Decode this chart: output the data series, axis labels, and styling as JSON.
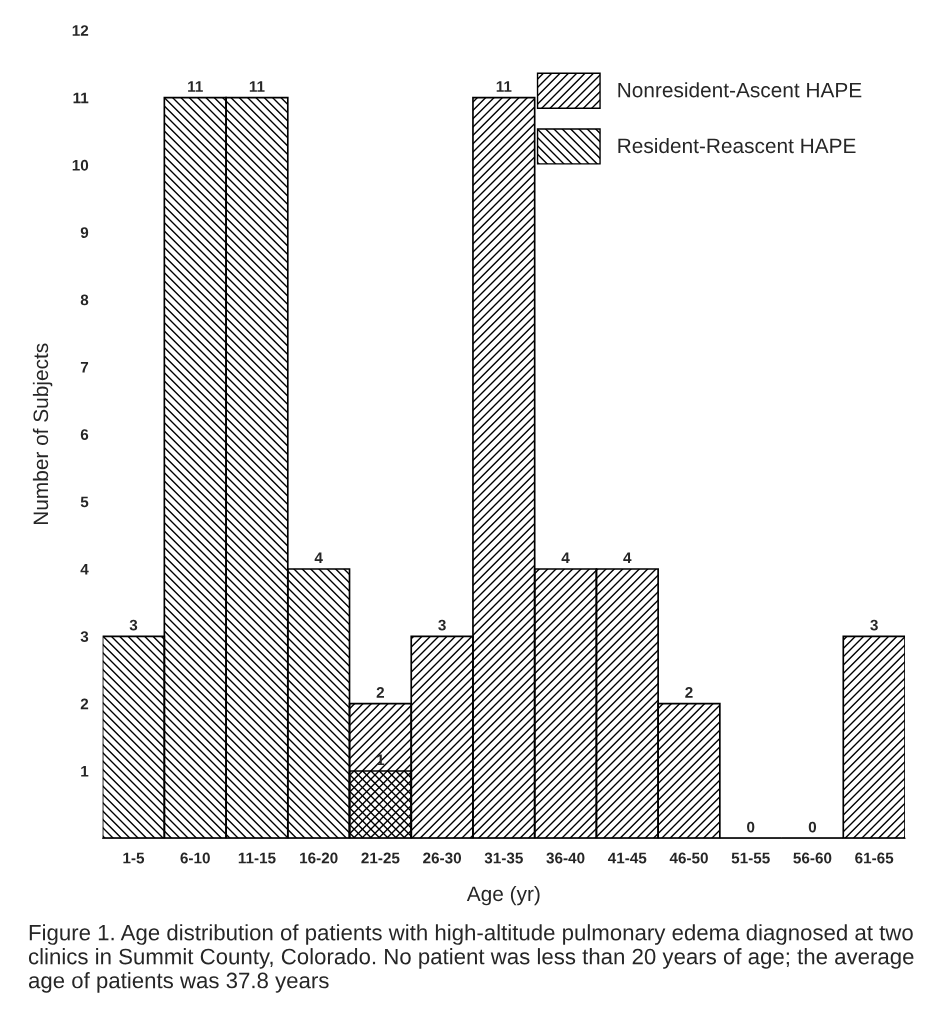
{
  "chart_data": {
    "type": "bar",
    "xlabel": "Age (yr)",
    "ylabel": "Number of Subjects",
    "categories": [
      "1-5",
      "6-10",
      "11-15",
      "16-20",
      "21-25",
      "26-30",
      "31-35",
      "36-40",
      "41-45",
      "46-50",
      "51-55",
      "56-60",
      "61-65"
    ],
    "series": [
      {
        "name": "Nonresident-Ascent HAPE",
        "color": "#000000",
        "values": [
          0,
          0,
          0,
          0,
          2,
          3,
          11,
          4,
          4,
          2,
          0,
          0,
          3
        ],
        "value_labels": [
          null,
          null,
          null,
          null,
          "2",
          "3",
          "11",
          "4",
          "4",
          "2",
          "0",
          "0",
          "3"
        ]
      },
      {
        "name": "Resident-Reascent HAPE",
        "color": "#000000",
        "values": [
          3,
          11,
          11,
          4,
          1,
          0,
          0,
          0,
          0,
          0,
          0,
          0,
          0
        ],
        "value_labels": [
          "3",
          "11",
          "11",
          "4",
          "1",
          null,
          null,
          null,
          null,
          null,
          null,
          null,
          null
        ]
      }
    ],
    "ylim": [
      0,
      12
    ],
    "yticks": [
      1,
      2,
      3,
      4,
      5,
      6,
      7,
      8,
      9,
      10,
      11,
      12
    ],
    "grid": false,
    "legend": "top right",
    "annotations": [
      "Figure 1. Age distribution of patients with high-altitude pulmonary edema diagnosed at two clinics in Summit County, Colorado. No patient was less than 20 years of age; the average age of patients was 37.8 years"
    ]
  }
}
